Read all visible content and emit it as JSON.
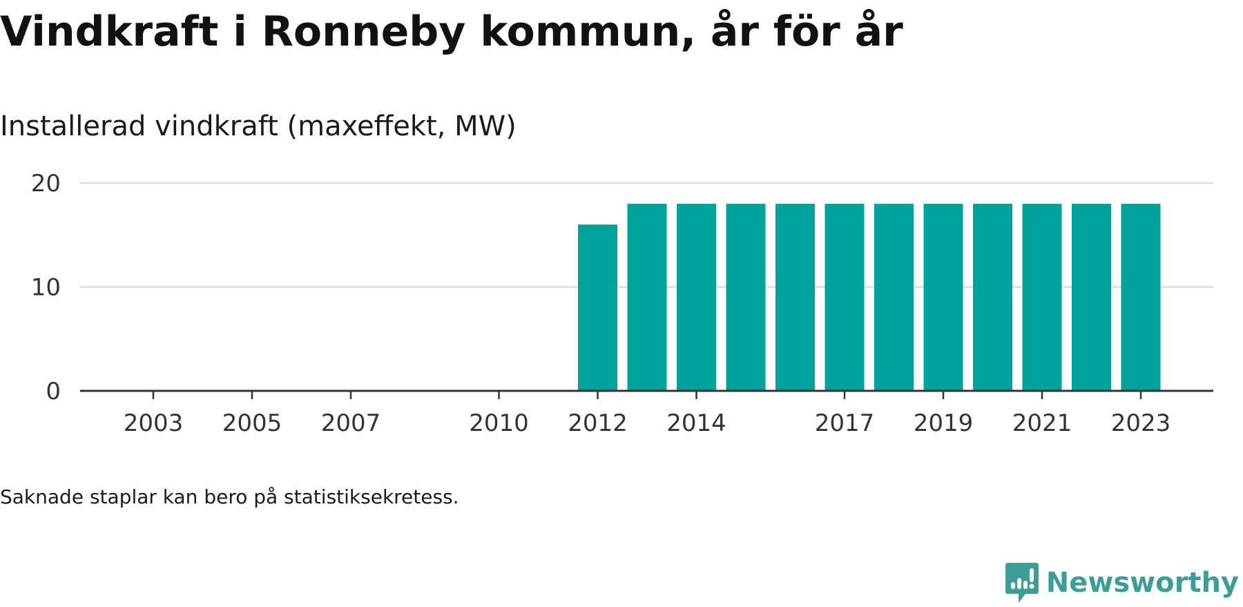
{
  "header": {
    "title": "Vindkraft i Ronneby kommun, år för år",
    "subtitle": "Installerad vindkraft (maxeffekt, MW)"
  },
  "footer": {
    "note": "Saknade staplar kan bero på statistiksekretess.",
    "brand": "Newsworthy",
    "brand_icon": "newsworthy-logo-icon"
  },
  "colors": {
    "bar": "#00a39b",
    "grid": "#dcdcdc",
    "axis": "#333333",
    "brand": "#3e9d96"
  },
  "chart_data": {
    "type": "bar",
    "x": [
      2002,
      2003,
      2004,
      2005,
      2006,
      2007,
      2008,
      2009,
      2010,
      2011,
      2012,
      2013,
      2014,
      2015,
      2016,
      2017,
      2018,
      2019,
      2020,
      2021,
      2022,
      2023
    ],
    "values": [
      null,
      null,
      null,
      null,
      null,
      null,
      null,
      null,
      null,
      null,
      16,
      18,
      18,
      18,
      18,
      18,
      18,
      18,
      18,
      18,
      18,
      18
    ],
    "x_tick_labels": [
      "2003",
      "2005",
      "2007",
      "2010",
      "2012",
      "2014",
      "2017",
      "2019",
      "2021",
      "2023"
    ],
    "y_ticks": [
      0,
      10,
      20
    ],
    "ylim": [
      0,
      20
    ],
    "title": "Vindkraft i Ronneby kommun, år för år",
    "subtitle": "Installerad vindkraft (maxeffekt, MW)",
    "grid": true,
    "legend": false
  }
}
